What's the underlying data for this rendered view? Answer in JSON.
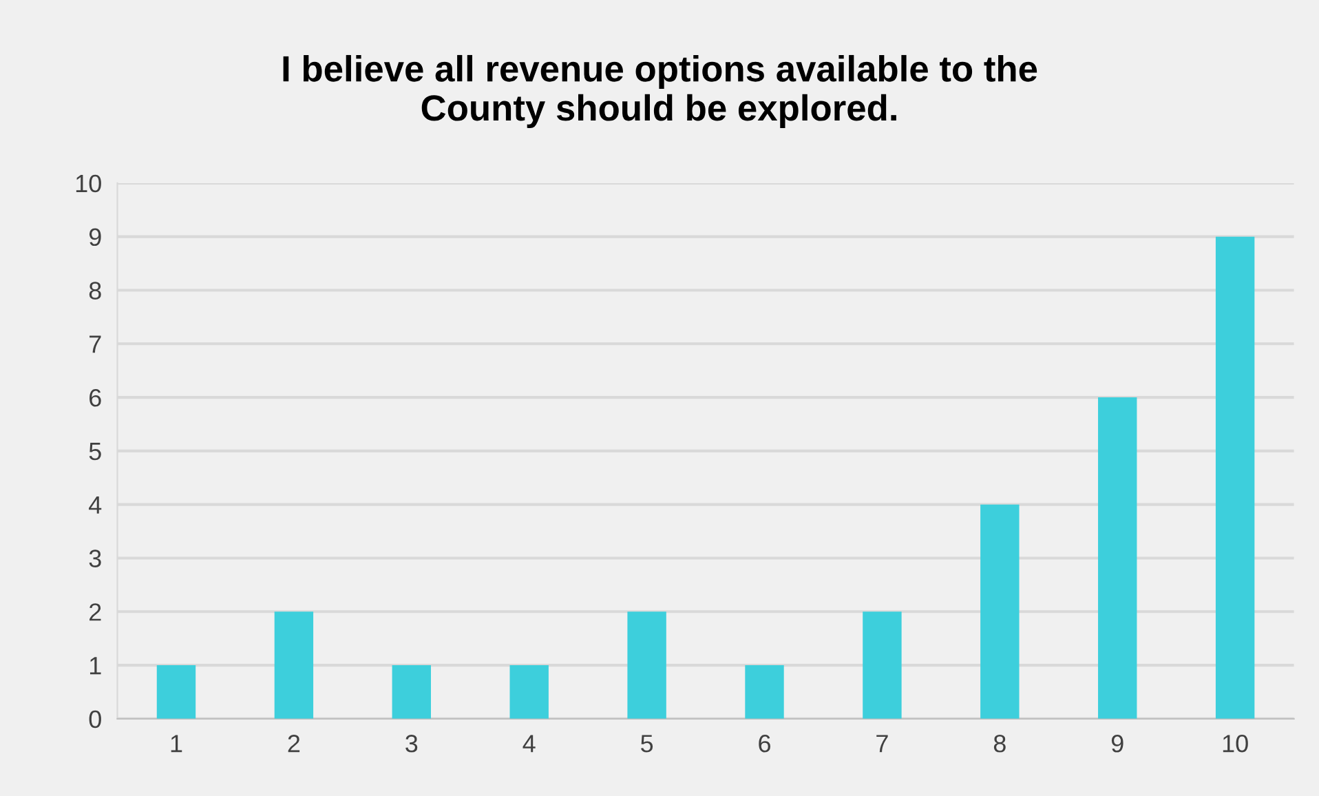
{
  "chart_data": {
    "type": "bar",
    "title": "I believe all revenue options available to the\nCounty should be explored.",
    "categories": [
      "1",
      "2",
      "3",
      "4",
      "5",
      "6",
      "7",
      "8",
      "9",
      "10"
    ],
    "values": [
      1,
      2,
      1,
      1,
      2,
      1,
      2,
      4,
      6,
      9
    ],
    "color": "#3dcfdc",
    "ylim": [
      0,
      10
    ],
    "yticks": [
      0,
      1,
      2,
      3,
      4,
      5,
      6,
      7,
      8,
      9,
      10
    ],
    "grid": "y"
  }
}
